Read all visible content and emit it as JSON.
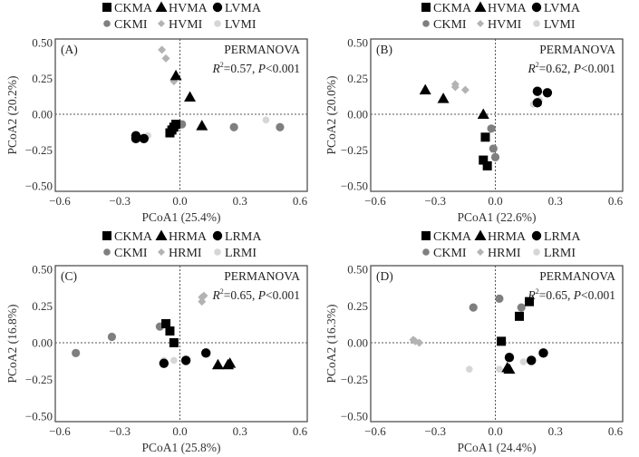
{
  "figure": {
    "permanova_label": "PERMANOVA"
  },
  "styles": {
    "CKMA": {
      "shape": "square",
      "color": "#000000"
    },
    "CKMI": {
      "shape": "circle",
      "color": "#7f7f7f"
    },
    "HMA": {
      "shape": "triangle",
      "color": "#000000"
    },
    "HMI": {
      "shape": "diamond",
      "color": "#b3b3b3"
    },
    "LMA": {
      "shape": "circle",
      "color": "#000000"
    },
    "LMI": {
      "shape": "circle",
      "color": "#d6d6d6"
    }
  },
  "chart_data": [
    {
      "type": "scatter",
      "panel_label": "(A)",
      "xlabel": "PCoA1 (25.4%)",
      "ylabel": "PCoA2 (20.2%)",
      "xlim": [
        -0.65,
        0.65
      ],
      "ylim": [
        -0.55,
        0.55
      ],
      "xticks": [
        -0.6,
        -0.3,
        0.0,
        0.3,
        0.6
      ],
      "xtick_labels": [
        "−0.6",
        "−0.3",
        "0.0",
        "0.3",
        "0.6"
      ],
      "yticks": [
        0.5,
        0.25,
        0.0,
        -0.25,
        -0.5
      ],
      "ytick_labels": [
        "0.50",
        "0.25",
        "0.00",
        "−0.25",
        "−0.50"
      ],
      "stat": {
        "r2": "0.57",
        "p": "0.001"
      },
      "legend": {
        "placement": "top-center",
        "row1": [
          "CKMA",
          "HVMA",
          "LVMA"
        ],
        "row2": [
          "CKMI",
          "HVMI",
          "LVMI"
        ]
      },
      "series": [
        {
          "name": "CKMA",
          "style": "CKMA",
          "points": [
            [
              -0.05,
              -0.13
            ],
            [
              -0.04,
              -0.11
            ],
            [
              -0.03,
              -0.09
            ],
            [
              -0.02,
              -0.07
            ]
          ]
        },
        {
          "name": "CKMI",
          "style": "CKMI",
          "points": [
            [
              0.01,
              -0.07
            ],
            [
              0.27,
              -0.09
            ],
            [
              0.5,
              -0.09
            ]
          ]
        },
        {
          "name": "HVMA",
          "style": "HMA",
          "points": [
            [
              -0.02,
              0.27
            ],
            [
              0.05,
              0.12
            ],
            [
              0.11,
              -0.08
            ]
          ]
        },
        {
          "name": "HVMI",
          "style": "HMI",
          "points": [
            [
              -0.09,
              0.45
            ],
            [
              -0.07,
              0.39
            ],
            [
              -0.03,
              0.23
            ]
          ]
        },
        {
          "name": "LVMA",
          "style": "LMA",
          "points": [
            [
              -0.22,
              -0.15
            ],
            [
              -0.22,
              -0.17
            ],
            [
              -0.18,
              -0.17
            ]
          ]
        },
        {
          "name": "LVMI",
          "style": "LMI",
          "points": [
            [
              -0.16,
              -0.15
            ],
            [
              0.43,
              -0.04
            ]
          ]
        }
      ]
    },
    {
      "type": "scatter",
      "panel_label": "(B)",
      "xlabel": "PCoA1 (22.6%)",
      "ylabel": "PCoA2 (20.0%)",
      "xlim": [
        -0.65,
        0.65
      ],
      "ylim": [
        -0.55,
        0.55
      ],
      "xticks": [
        -0.6,
        -0.3,
        0.0,
        0.3,
        0.6
      ],
      "xtick_labels": [
        "−0.6",
        "−0.3",
        "0.0",
        "0.3",
        "0.6"
      ],
      "yticks": [
        0.5,
        0.25,
        0.0,
        -0.25,
        -0.5
      ],
      "ytick_labels": [
        "0.50",
        "0.25",
        "0.00",
        "−0.25",
        "−0.50"
      ],
      "stat": {
        "r2": "0.62",
        "p": "0.001"
      },
      "legend": {
        "placement": "top-center",
        "row1": [
          "CKMA",
          "HVMA",
          "LVMA"
        ],
        "row2": [
          "CKMI",
          "HVMI",
          "LVMI"
        ]
      },
      "series": [
        {
          "name": "CKMA",
          "style": "CKMA",
          "points": [
            [
              -0.05,
              -0.16
            ],
            [
              -0.06,
              -0.32
            ],
            [
              -0.04,
              -0.36
            ]
          ]
        },
        {
          "name": "CKMI",
          "style": "CKMI",
          "points": [
            [
              -0.02,
              -0.1
            ],
            [
              -0.01,
              -0.24
            ],
            [
              0.0,
              -0.3
            ]
          ]
        },
        {
          "name": "HVMA",
          "style": "HMA",
          "points": [
            [
              -0.35,
              0.17
            ],
            [
              -0.26,
              0.11
            ],
            [
              -0.06,
              0.0
            ]
          ]
        },
        {
          "name": "HVMI",
          "style": "HMI",
          "points": [
            [
              -0.2,
              0.21
            ],
            [
              -0.2,
              0.19
            ],
            [
              -0.15,
              0.17
            ]
          ]
        },
        {
          "name": "LVMA",
          "style": "LMA",
          "points": [
            [
              0.21,
              0.16
            ],
            [
              0.26,
              0.15
            ],
            [
              0.21,
              0.08
            ]
          ]
        },
        {
          "name": "LVMI",
          "style": "LMI",
          "points": [
            [
              0.19,
              0.07
            ],
            [
              0.22,
              0.1
            ]
          ]
        }
      ]
    },
    {
      "type": "scatter",
      "panel_label": "(C)",
      "xlabel": "PCoA1 (25.8%)",
      "ylabel": "PCoA2 (16.8%)",
      "xlim": [
        -0.65,
        0.65
      ],
      "ylim": [
        -0.55,
        0.55
      ],
      "xticks": [
        -0.6,
        -0.3,
        0.0,
        0.3,
        0.6
      ],
      "xtick_labels": [
        "−0.6",
        "−0.3",
        "0.0",
        "0.3",
        "0.6"
      ],
      "yticks": [
        0.5,
        0.25,
        0.0,
        -0.25,
        -0.5
      ],
      "ytick_labels": [
        "0.50",
        "0.25",
        "0.00",
        "−0.25",
        "−0.50"
      ],
      "stat": {
        "r2": "0.65",
        "p": "0.001"
      },
      "legend": {
        "placement": "top-center",
        "row1": [
          "CKMA",
          "HRMA",
          "LRMA"
        ],
        "row2": [
          "CKMI",
          "HRMI",
          "LRMI"
        ]
      },
      "series": [
        {
          "name": "CKMA",
          "style": "CKMA",
          "points": [
            [
              -0.07,
              0.13
            ],
            [
              -0.05,
              0.08
            ],
            [
              -0.03,
              0.0
            ]
          ]
        },
        {
          "name": "CKMI",
          "style": "CKMI",
          "points": [
            [
              -0.1,
              0.11
            ],
            [
              -0.34,
              0.04
            ],
            [
              -0.52,
              -0.07
            ]
          ]
        },
        {
          "name": "HRMA",
          "style": "HMA",
          "points": [
            [
              0.19,
              -0.15
            ],
            [
              0.24,
              -0.15
            ],
            [
              0.25,
              -0.14
            ]
          ]
        },
        {
          "name": "HRMI",
          "style": "HMI",
          "points": [
            [
              0.11,
              0.31
            ],
            [
              0.12,
              0.32
            ],
            [
              0.11,
              0.28
            ]
          ]
        },
        {
          "name": "LRMA",
          "style": "LMA",
          "points": [
            [
              -0.08,
              -0.14
            ],
            [
              0.03,
              -0.12
            ],
            [
              0.13,
              -0.07
            ]
          ]
        },
        {
          "name": "LRMI",
          "style": "LMI",
          "points": [
            [
              -0.08,
              -0.12
            ],
            [
              -0.03,
              -0.12
            ]
          ]
        }
      ]
    },
    {
      "type": "scatter",
      "panel_label": "(D)",
      "xlabel": "PCoA1 (24.4%)",
      "ylabel": "PCoA2 (16.3%)",
      "xlim": [
        -0.65,
        0.65
      ],
      "ylim": [
        -0.55,
        0.55
      ],
      "xticks": [
        -0.6,
        -0.3,
        0.0,
        0.3,
        0.6
      ],
      "xtick_labels": [
        "−0.6",
        "−0.3",
        "0.0",
        "0.3",
        "0.6"
      ],
      "yticks": [
        0.5,
        0.25,
        0.0,
        -0.25,
        -0.5
      ],
      "ytick_labels": [
        "0.50",
        "0.25",
        "0.00",
        "−0.25",
        "−0.50"
      ],
      "stat": {
        "r2": "0.65",
        "p": "0.001"
      },
      "legend": {
        "placement": "top-center",
        "row1": [
          "CKMA",
          "HRMA",
          "LRMA"
        ],
        "row2": [
          "CKMI",
          "HRMI",
          "LRMI"
        ]
      },
      "series": [
        {
          "name": "CKMA",
          "style": "CKMA",
          "points": [
            [
              0.17,
              0.28
            ],
            [
              0.12,
              0.18
            ],
            [
              0.03,
              0.01
            ]
          ]
        },
        {
          "name": "CKMI",
          "style": "CKMI",
          "points": [
            [
              0.02,
              0.3
            ],
            [
              -0.11,
              0.24
            ],
            [
              0.13,
              0.24
            ]
          ]
        },
        {
          "name": "HRMA",
          "style": "HMA",
          "points": [
            [
              0.06,
              -0.17
            ],
            [
              0.07,
              -0.18
            ]
          ]
        },
        {
          "name": "HRMI",
          "style": "HMI",
          "points": [
            [
              -0.41,
              0.02
            ],
            [
              -0.4,
              0.01
            ],
            [
              -0.38,
              0.0
            ]
          ]
        },
        {
          "name": "LRMA",
          "style": "LMA",
          "points": [
            [
              0.07,
              -0.1
            ],
            [
              0.18,
              -0.12
            ],
            [
              0.24,
              -0.07
            ]
          ]
        },
        {
          "name": "LRMI",
          "style": "LMI",
          "points": [
            [
              -0.13,
              -0.18
            ],
            [
              0.02,
              -0.18
            ],
            [
              0.14,
              -0.13
            ]
          ]
        }
      ]
    }
  ]
}
